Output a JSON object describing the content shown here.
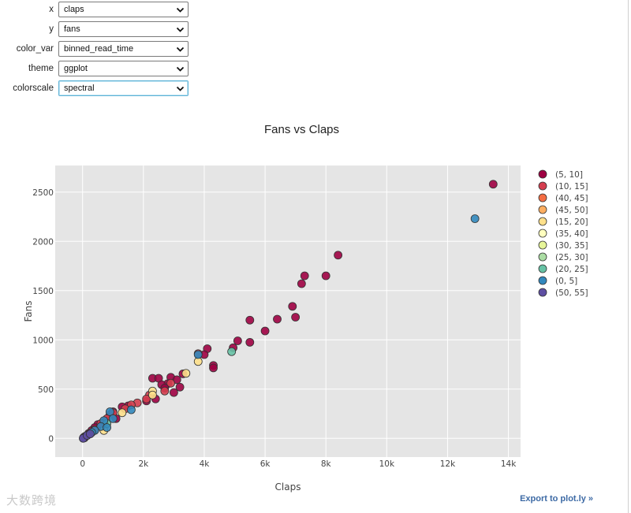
{
  "controls": {
    "x": {
      "label": "x",
      "value": "claps"
    },
    "y": {
      "label": "y",
      "value": "fans"
    },
    "color_var": {
      "label": "color_var",
      "value": "binned_read_time"
    },
    "theme": {
      "label": "theme",
      "value": "ggplot"
    },
    "colorscale": {
      "label": "colorscale",
      "value": "spectral"
    }
  },
  "export_label": "Export to plot.ly »",
  "watermark": "大数跨境",
  "chart_data": {
    "type": "scatter",
    "title": "Fans vs Claps",
    "xlabel": "Claps",
    "ylabel": "Fans",
    "xlim": [
      -900,
      14400
    ],
    "ylim": [
      -190,
      2770
    ],
    "x_ticks": [
      0,
      2000,
      4000,
      6000,
      8000,
      10000,
      12000,
      14000
    ],
    "x_tick_labels": [
      "0",
      "2k",
      "4k",
      "6k",
      "8k",
      "10k",
      "12k",
      "14k"
    ],
    "y_ticks": [
      0,
      500,
      1000,
      1500,
      2000,
      2500
    ],
    "y_tick_labels": [
      "0",
      "500",
      "1000",
      "1500",
      "2000",
      "2500"
    ],
    "legend_position": "right",
    "series": [
      {
        "name": "(5, 10]",
        "color": "#9e0142",
        "points": [
          [
            13500,
            2580
          ],
          [
            8400,
            1860
          ],
          [
            8000,
            1650
          ],
          [
            7300,
            1650
          ],
          [
            7200,
            1570
          ],
          [
            6900,
            1340
          ],
          [
            7000,
            1230
          ],
          [
            6400,
            1210
          ],
          [
            5500,
            1200
          ],
          [
            6000,
            1090
          ],
          [
            5500,
            975
          ],
          [
            5100,
            990
          ],
          [
            4950,
            920
          ],
          [
            4100,
            910
          ],
          [
            4000,
            850
          ],
          [
            4300,
            740
          ],
          [
            4300,
            715
          ],
          [
            3300,
            655
          ],
          [
            2300,
            610
          ],
          [
            2500,
            610
          ],
          [
            2900,
            620
          ],
          [
            3100,
            595
          ],
          [
            2800,
            555
          ],
          [
            2600,
            545
          ],
          [
            2700,
            510
          ],
          [
            3000,
            465
          ],
          [
            3200,
            520
          ],
          [
            2400,
            400
          ],
          [
            2100,
            380
          ],
          [
            1500,
            330
          ],
          [
            1300,
            320
          ],
          [
            1000,
            270
          ],
          [
            900,
            240
          ],
          [
            1100,
            200
          ],
          [
            700,
            160
          ],
          [
            600,
            120
          ],
          [
            500,
            140
          ],
          [
            400,
            110
          ],
          [
            300,
            80
          ],
          [
            200,
            50
          ],
          [
            150,
            30
          ],
          [
            80,
            15
          ],
          [
            40,
            10
          ],
          [
            60,
            5
          ],
          [
            120,
            25
          ]
        ]
      },
      {
        "name": "(10, 15]",
        "color": "#d53e4f",
        "points": [
          [
            3800,
            860
          ],
          [
            2900,
            560
          ],
          [
            2700,
            480
          ],
          [
            2200,
            440
          ],
          [
            2100,
            400
          ],
          [
            1800,
            360
          ],
          [
            1600,
            340
          ],
          [
            1400,
            300
          ],
          [
            1000,
            260
          ],
          [
            800,
            200
          ],
          [
            600,
            150
          ],
          [
            400,
            90
          ]
        ]
      },
      {
        "name": "(40, 45]",
        "color": "#f46d43",
        "points": []
      },
      {
        "name": "(45, 50]",
        "color": "#fdae61",
        "points": []
      },
      {
        "name": "(15, 20]",
        "color": "#fee08b",
        "points": [
          [
            3400,
            660
          ],
          [
            3800,
            780
          ],
          [
            2300,
            480
          ],
          [
            2300,
            440
          ],
          [
            1300,
            260
          ],
          [
            700,
            80
          ]
        ]
      },
      {
        "name": "(35, 40]",
        "color": "#ffffbf",
        "points": []
      },
      {
        "name": "(30, 35]",
        "color": "#e6f598",
        "points": []
      },
      {
        "name": "(25, 30]",
        "color": "#abdda4",
        "points": []
      },
      {
        "name": "(20, 25]",
        "color": "#66c2a5",
        "points": [
          [
            4900,
            880
          ],
          [
            800,
            150
          ]
        ]
      },
      {
        "name": "(0, 5]",
        "color": "#3288bd",
        "points": [
          [
            12900,
            2230
          ],
          [
            3800,
            850
          ],
          [
            1600,
            290
          ],
          [
            900,
            270
          ],
          [
            1000,
            200
          ],
          [
            700,
            180
          ],
          [
            600,
            120
          ],
          [
            800,
            110
          ],
          [
            400,
            80
          ],
          [
            300,
            60
          ],
          [
            200,
            40
          ]
        ]
      },
      {
        "name": "(50, 55]",
        "color": "#5e4fa2",
        "points": [
          [
            80,
            20
          ],
          [
            30,
            5
          ],
          [
            20,
            0
          ],
          [
            150,
            30
          ],
          [
            250,
            45
          ]
        ]
      }
    ]
  }
}
